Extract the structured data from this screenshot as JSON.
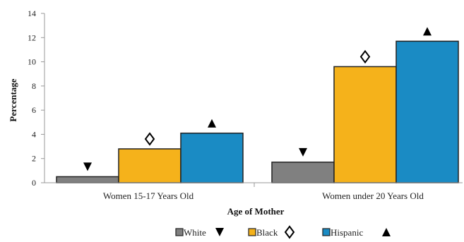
{
  "chart_data": {
    "type": "bar",
    "title": "",
    "xlabel": "Age of Mother",
    "ylabel": "Percentage",
    "ylim": [
      0,
      14
    ],
    "yticks": [
      0,
      2,
      4,
      6,
      8,
      10,
      12,
      14
    ],
    "categories": [
      "Women 15-17 Years Old",
      "Women under 20 Years Old"
    ],
    "series": [
      {
        "name": "White",
        "values": [
          0.5,
          1.7
        ],
        "color": "#808080",
        "marker": "triangle-down"
      },
      {
        "name": "Black",
        "values": [
          2.8,
          9.6
        ],
        "color": "#F5B21B",
        "marker": "diamond"
      },
      {
        "name": "Hispanic",
        "values": [
          4.1,
          11.7
        ],
        "color": "#1A8BC4",
        "marker": "triangle-up"
      }
    ],
    "grid": false,
    "legend": "bottom"
  }
}
